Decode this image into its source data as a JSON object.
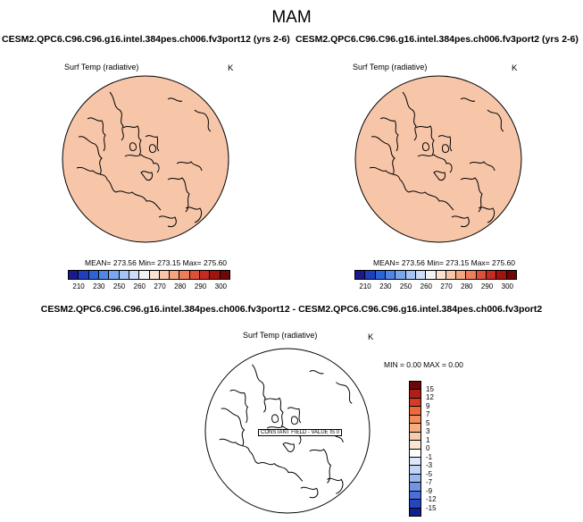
{
  "main_title": "MAM",
  "panels": [
    {
      "case_title": "CESM2.QPC6.C96.C96.g16.intel.384pes.ch006.fv3port12 (yrs 2-6)",
      "variable": "Surf Temp (radiative)",
      "units": "K",
      "stats": "MEAN= 273.56  Min= 273.15  Max= 275.60",
      "fill_color": "#f7c6a9",
      "colorbar_ticks": [
        "210",
        "230",
        "250",
        "260",
        "270",
        "280",
        "290",
        "300"
      ]
    },
    {
      "case_title": "CESM2.QPC6.C96.C96.g16.intel.384pes.ch006.fv3port2 (yrs 2-6)",
      "variable": "Surf Temp (radiative)",
      "units": "K",
      "stats": "MEAN= 273.56  Min= 273.15  Max= 275.60",
      "fill_color": "#f7c6a9",
      "colorbar_ticks": [
        "210",
        "230",
        "250",
        "260",
        "270",
        "280",
        "290",
        "300"
      ]
    }
  ],
  "diff": {
    "title": "CESM2.QPC6.C96.C96.g16.intel.384pes.ch006.fv3port12 - CESM2.QPC6.C96.C96.g16.intel.384pes.ch006.fv3port2",
    "variable": "Surf Temp (radiative)",
    "units": "K",
    "stats": "MIN =  0.00 MAX =  0.00",
    "constant_label": "CONSTANT FIELD - VALUE IS 0",
    "colorbar_ticks": [
      "15",
      "12",
      "9",
      "7",
      "5",
      "3",
      "1",
      "0",
      "-1",
      "-3",
      "-5",
      "-7",
      "-9",
      "-12",
      "-15"
    ]
  },
  "chart_data": [
    {
      "type": "heatmap",
      "projection": "north polar stereographic",
      "title": "CESM2.QPC6.C96.C96.g16.intel.384pes.ch006.fv3port12 (yrs 2-6)",
      "variable": "Surf Temp (radiative)",
      "units": "K",
      "mean": 273.56,
      "min": 273.15,
      "max": 275.6,
      "levels": [
        210,
        220,
        230,
        240,
        250,
        255,
        260,
        265,
        270,
        275,
        280,
        285,
        290,
        295,
        300
      ],
      "colorbar_colors": [
        "#1a1a8c",
        "#1f3fbf",
        "#2b63d9",
        "#4f86e8",
        "#7aa6ee",
        "#a6c4f3",
        "#cddcf7",
        "#f2f2f2",
        "#fae2d2",
        "#f7c6a9",
        "#f3a580",
        "#ec7e5b",
        "#dd513c",
        "#c42b22",
        "#a0140f",
        "#6e0707"
      ]
    },
    {
      "type": "heatmap",
      "projection": "north polar stereographic",
      "title": "CESM2.QPC6.C96.C96.g16.intel.384pes.ch006.fv3port2 (yrs 2-6)",
      "variable": "Surf Temp (radiative)",
      "units": "K",
      "mean": 273.56,
      "min": 273.15,
      "max": 275.6,
      "levels": [
        210,
        220,
        230,
        240,
        250,
        255,
        260,
        265,
        270,
        275,
        280,
        285,
        290,
        295,
        300
      ],
      "colorbar_colors": [
        "#1a1a8c",
        "#1f3fbf",
        "#2b63d9",
        "#4f86e8",
        "#7aa6ee",
        "#a6c4f3",
        "#cddcf7",
        "#f2f2f2",
        "#fae2d2",
        "#f7c6a9",
        "#f3a580",
        "#ec7e5b",
        "#dd513c",
        "#c42b22",
        "#a0140f",
        "#6e0707"
      ]
    },
    {
      "type": "heatmap",
      "projection": "north polar stereographic",
      "title": "CESM2.QPC6.C96.C96.g16.intel.384pes.ch006.fv3port12 - CESM2.QPC6.C96.C96.g16.intel.384pes.ch006.fv3port2",
      "variable": "Surf Temp (radiative)",
      "units": "K",
      "min": 0.0,
      "max": 0.0,
      "constant_value": 0,
      "levels": [
        15,
        12,
        9,
        7,
        5,
        3,
        1,
        0,
        -1,
        -3,
        -5,
        -7,
        -9,
        -12,
        -15
      ],
      "colorbar_colors": [
        "#6e0707",
        "#b01f15",
        "#d63c25",
        "#ec6a3e",
        "#f48d5c",
        "#f7ad82",
        "#f9cba8",
        "#fbe6d6",
        "#ffffff",
        "#dde8f9",
        "#c2d5f4",
        "#9ab9ee",
        "#6f95e4",
        "#4a6fd6",
        "#2646c0",
        "#101f8f"
      ]
    }
  ]
}
